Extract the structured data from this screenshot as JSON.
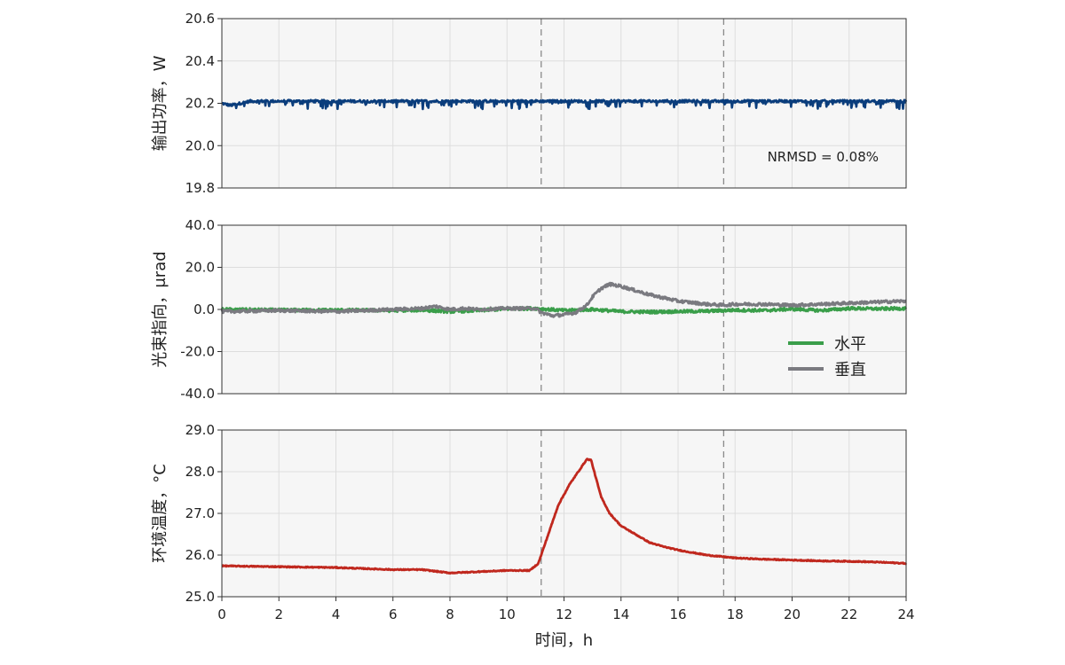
{
  "colors": {
    "power": "#0a3d7c",
    "horizontal": "#3a9e4a",
    "vertical": "#7a7a80",
    "temperature": "#c0281e",
    "plot_bg": "#f6f6f6",
    "grid": "#dddddd",
    "event_line": "#8a8a8a"
  },
  "chart_data": [
    {
      "type": "line",
      "ylabel": "输出功率，W",
      "ylim": [
        19.8,
        20.6
      ],
      "yticks": [
        19.8,
        20.0,
        20.2,
        20.4,
        20.6
      ],
      "ytick_labels": [
        "19.8",
        "20.0",
        "20.2",
        "20.4",
        "20.6"
      ],
      "annotation": "NRMSD = 0.08%",
      "grid": true,
      "event_lines_x": [
        11.2,
        17.6
      ],
      "series": [
        {
          "color_key": "power",
          "x": [
            0,
            0.3,
            1,
            2,
            3,
            4,
            5,
            6,
            7,
            8,
            9,
            10,
            11,
            12,
            13,
            14,
            15,
            16,
            17,
            18,
            19,
            20,
            21,
            22,
            23,
            24
          ],
          "y": [
            20.2,
            20.19,
            20.21,
            20.21,
            20.21,
            20.21,
            20.21,
            20.21,
            20.21,
            20.21,
            20.21,
            20.21,
            20.21,
            20.21,
            20.21,
            20.21,
            20.21,
            20.21,
            20.21,
            20.21,
            20.21,
            20.21,
            20.21,
            20.21,
            20.21,
            20.21
          ]
        }
      ]
    },
    {
      "type": "line",
      "ylabel": "光束指向，μrad",
      "ylim": [
        -40,
        40
      ],
      "yticks": [
        -40,
        -20,
        0,
        20,
        40
      ],
      "ytick_labels": [
        "-40.0",
        "-20.0",
        "0.0",
        "20.0",
        "40.0"
      ],
      "grid": true,
      "legend_position": "right",
      "event_lines_x": [
        11.2,
        17.6
      ],
      "series": [
        {
          "name": "水平",
          "color_key": "horizontal",
          "x": [
            0,
            2,
            4,
            6,
            7,
            8,
            9,
            10,
            11,
            12,
            13,
            14,
            15,
            16,
            17,
            18,
            19,
            20,
            21,
            22,
            23,
            24
          ],
          "y": [
            0,
            -0.3,
            -0.3,
            -0.5,
            -0.3,
            -1.0,
            -0.5,
            0.3,
            0.5,
            -0.5,
            0,
            -1.0,
            -1.2,
            -1.0,
            -0.8,
            -0.3,
            -0.5,
            0.2,
            -0.5,
            0.5,
            0.3,
            0.5
          ]
        },
        {
          "name": "垂直",
          "color_key": "vertical",
          "x": [
            0,
            2,
            4,
            6,
            7,
            7.5,
            8,
            8.5,
            9,
            10,
            11,
            11.2,
            11.6,
            12,
            12.4,
            12.8,
            13,
            13.3,
            13.6,
            14,
            14.5,
            15,
            16,
            17,
            17.6,
            18,
            19,
            20,
            21,
            22,
            23,
            24
          ],
          "y": [
            -1.0,
            -0.5,
            -1.0,
            0,
            0.5,
            1.5,
            0,
            0.5,
            0,
            0.5,
            0.5,
            -1.5,
            -3.0,
            -2.5,
            -1.5,
            2,
            6,
            10,
            12,
            11,
            9,
            7,
            4,
            2.5,
            2,
            2.5,
            2.5,
            2,
            2.5,
            3,
            3.5,
            4
          ]
        }
      ]
    },
    {
      "type": "line",
      "ylabel": "环境温度，°C",
      "xlabel": "时间，h",
      "ylim": [
        25.0,
        29.0
      ],
      "yticks": [
        25.0,
        26.0,
        27.0,
        28.0,
        29.0
      ],
      "ytick_labels": [
        "25.0",
        "26.0",
        "27.0",
        "28.0",
        "29.0"
      ],
      "xlim": [
        0,
        24
      ],
      "xticks": [
        0,
        2,
        4,
        6,
        8,
        10,
        12,
        14,
        16,
        18,
        20,
        22,
        24
      ],
      "xtick_labels": [
        "0",
        "2",
        "4",
        "6",
        "8",
        "10",
        "12",
        "14",
        "16",
        "18",
        "20",
        "22",
        "24"
      ],
      "grid": true,
      "event_lines_x": [
        11.2,
        17.6
      ],
      "series": [
        {
          "color_key": "temperature",
          "x": [
            0,
            2,
            4,
            6,
            7,
            8,
            9,
            10,
            10.8,
            11.1,
            11.4,
            11.8,
            12.2,
            12.6,
            12.8,
            12.95,
            13.1,
            13.3,
            13.6,
            14,
            14.5,
            15,
            15.5,
            16,
            17,
            18,
            19,
            20,
            21,
            22,
            23,
            24
          ],
          "y": [
            25.74,
            25.72,
            25.7,
            25.65,
            25.65,
            25.57,
            25.6,
            25.63,
            25.63,
            25.8,
            26.4,
            27.2,
            27.7,
            28.1,
            28.3,
            28.28,
            27.9,
            27.4,
            27.0,
            26.7,
            26.5,
            26.3,
            26.2,
            26.12,
            26.0,
            25.93,
            25.9,
            25.88,
            25.86,
            25.85,
            25.83,
            25.8
          ]
        }
      ]
    }
  ]
}
